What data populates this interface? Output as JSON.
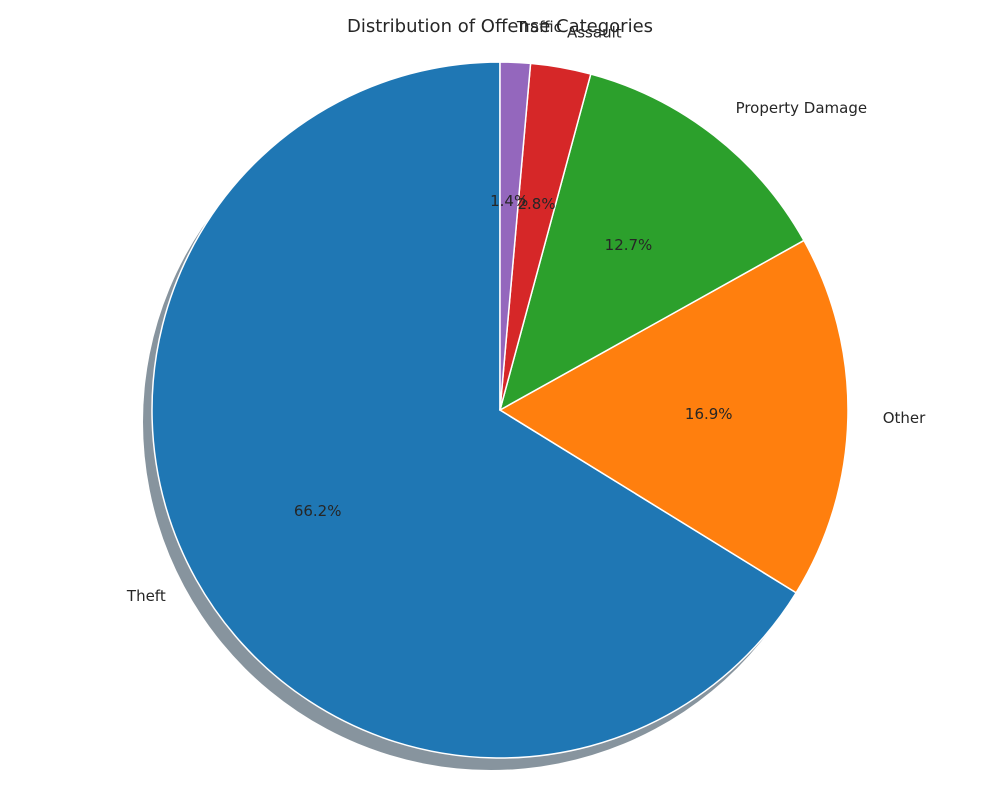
{
  "chart_data": {
    "type": "pie",
    "title": "Distribution of Offense Categories",
    "slices": [
      {
        "label": "Theft",
        "value": 66.2,
        "pct_label": "66.2%",
        "color": "#1f77b4"
      },
      {
        "label": "Other",
        "value": 16.9,
        "pct_label": "16.9%",
        "color": "#ff7f0e"
      },
      {
        "label": "Property Damage",
        "value": 12.7,
        "pct_label": "12.7%",
        "color": "#2ca02c"
      },
      {
        "label": "Assault",
        "value": 2.8,
        "pct_label": "2.8%",
        "color": "#d62728"
      },
      {
        "label": "Traffic",
        "value": 1.4,
        "pct_label": "1.4%",
        "color": "#9467bd"
      }
    ],
    "start_angle_deg": 90,
    "direction": "counterclockwise",
    "shadow": true,
    "legend": "none"
  }
}
